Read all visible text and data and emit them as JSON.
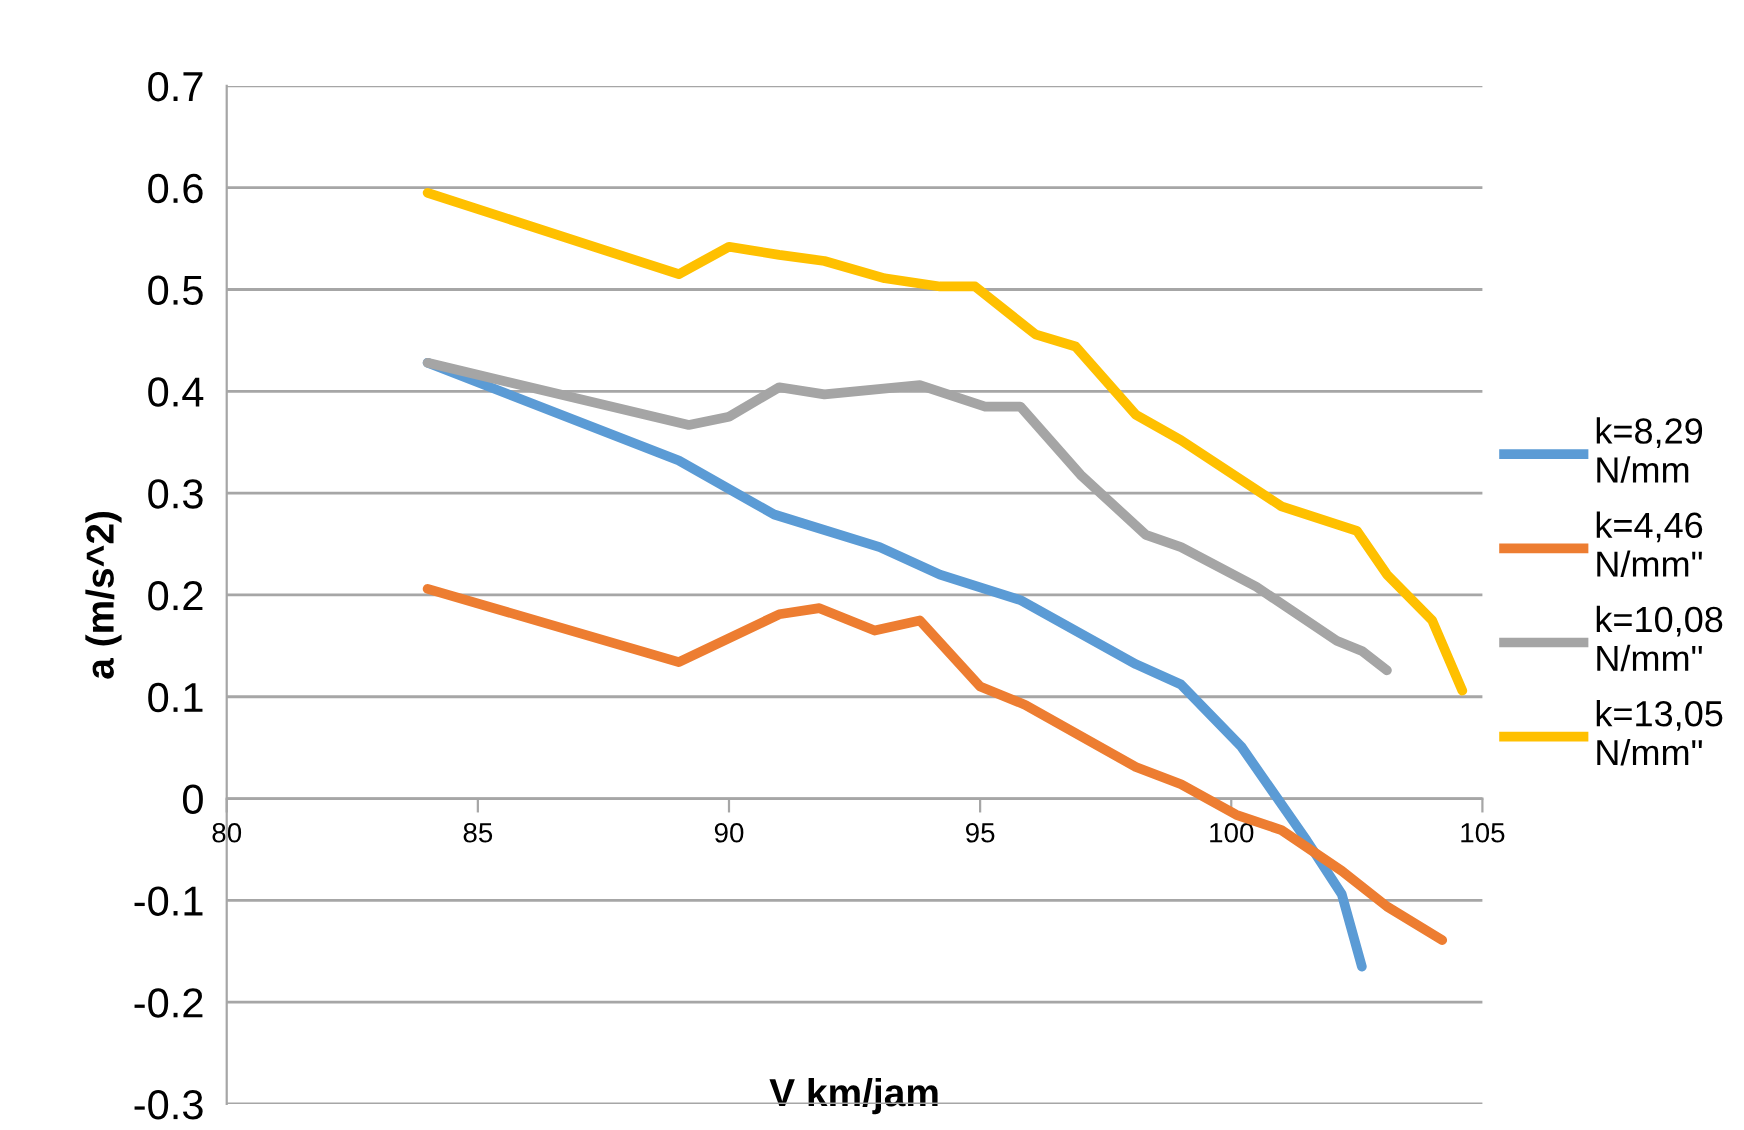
{
  "chart_data": {
    "type": "line",
    "xlabel": "V km/jam",
    "ylabel": "a (m/s^2)",
    "xlim": [
      80,
      105
    ],
    "xticks": [
      80,
      85,
      90,
      95,
      100,
      105
    ],
    "ylim": [
      -0.3,
      0.7
    ],
    "yticks": [
      -0.3,
      -0.2,
      -0.1,
      0,
      0.1,
      0.2,
      0.3,
      0.4,
      0.5,
      0.6,
      0.7
    ],
    "grid": "y",
    "legend": "right",
    "marker": "none",
    "line_style": "solid",
    "series": [
      {
        "name": "k=8,29 N/mm",
        "color": "#5b9bd5",
        "x": [
          84,
          89.0,
          90.9,
          93.0,
          94.2,
          95.8,
          98.1,
          99.0,
          100.2,
          101.5,
          102.2,
          102.6
        ],
        "values": [
          0.428,
          0.332,
          0.279,
          0.247,
          0.22,
          0.195,
          0.132,
          0.112,
          0.051,
          -0.041,
          -0.094,
          -0.165
        ]
      },
      {
        "name": "k=4,46 N/mm\"",
        "color": "#ed7d31",
        "x": [
          84,
          89.0,
          91.0,
          91.8,
          92.9,
          93.8,
          95.0,
          95.9,
          98.1,
          99.0,
          100.1,
          101.0,
          102.2,
          103.1,
          104.2
        ],
        "values": [
          0.206,
          0.134,
          0.181,
          0.187,
          0.165,
          0.175,
          0.11,
          0.092,
          0.031,
          0.014,
          -0.016,
          -0.031,
          -0.071,
          -0.106,
          -0.139
        ]
      },
      {
        "name": "k=10,08 N/mm\"",
        "color": "#a5a5a5",
        "x": [
          84,
          89.2,
          90.0,
          91.0,
          91.9,
          93.8,
          95.1,
          95.8,
          97.0,
          98.3,
          99.0,
          100.5,
          102.1,
          102.6,
          103.1
        ],
        "values": [
          0.428,
          0.367,
          0.375,
          0.404,
          0.397,
          0.406,
          0.385,
          0.385,
          0.318,
          0.259,
          0.247,
          0.208,
          0.155,
          0.145,
          0.126
        ]
      },
      {
        "name": "k=13,05 N/mm\"",
        "color": "#ffc000",
        "x": [
          84,
          89.0,
          90.0,
          91.0,
          91.9,
          93.1,
          94.2,
          94.9,
          96.1,
          96.9,
          98.1,
          99.0,
          101.0,
          102.5,
          103.1,
          104.0,
          104.6
        ],
        "values": [
          0.595,
          0.515,
          0.542,
          0.534,
          0.528,
          0.511,
          0.503,
          0.503,
          0.456,
          0.444,
          0.377,
          0.352,
          0.287,
          0.263,
          0.22,
          0.175,
          0.106
        ]
      }
    ]
  }
}
